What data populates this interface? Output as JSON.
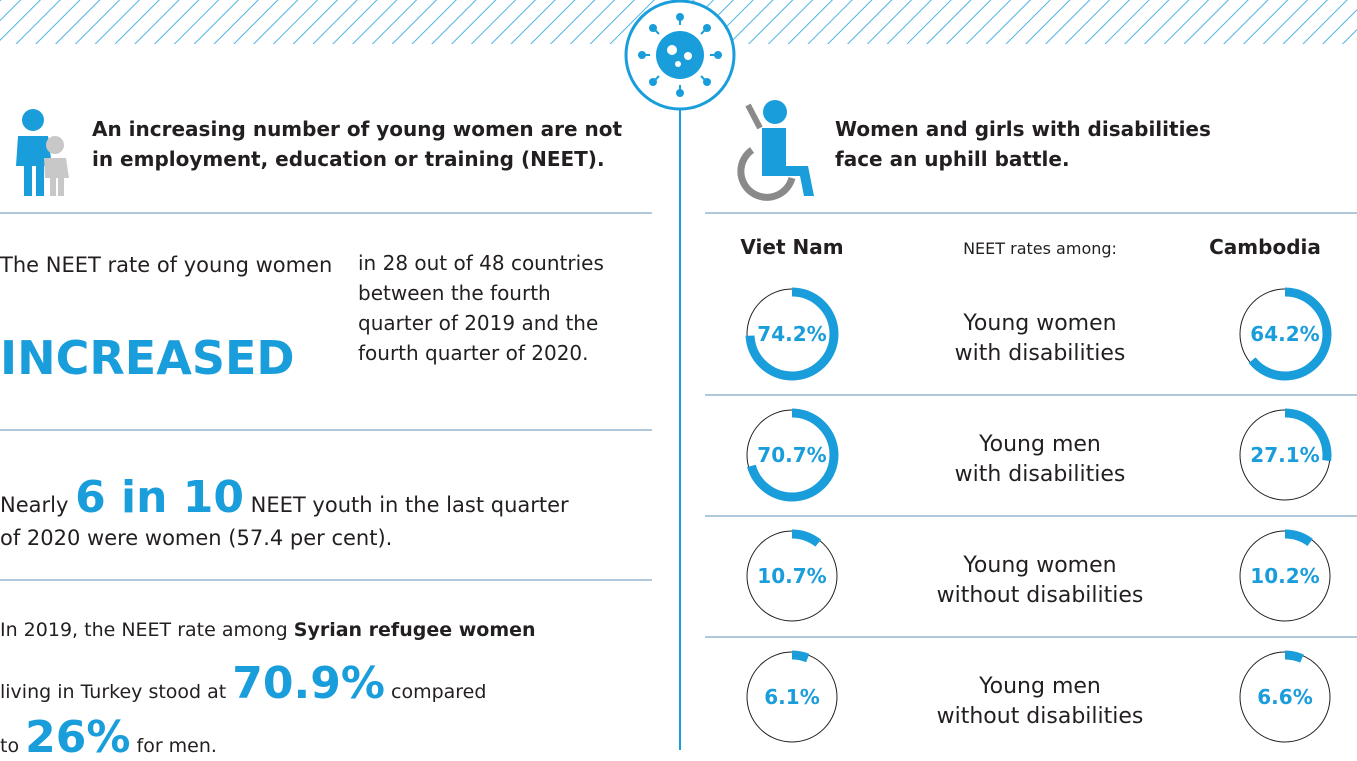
{
  "left": {
    "header": [
      "An increasing number of young women are not",
      "in employment, education or training (NEET)."
    ],
    "block1": {
      "intro": "The NEET rate of young women",
      "highlight": "INCREASED",
      "detail": [
        "in 28 out of 48 countries",
        "between the fourth",
        "quarter of 2019 and the",
        "fourth quarter of 2020."
      ]
    },
    "block2": {
      "prefix": "Nearly",
      "highlight": "6 in 10",
      "rest": "NEET youth in the last quarter",
      "line2": "of 2020 were women (57.4 per cent)."
    },
    "block3": {
      "a": "In 2019, the NEET rate among",
      "b": "Syrian refugee women",
      "c": "living in Turkey stood at",
      "d": "70.9%",
      "e": "compared",
      "f": "to",
      "g": "26%",
      "h": "for men."
    }
  },
  "right": {
    "header": [
      "Women and girls with disabilities",
      "face an uphill battle."
    ],
    "columns": [
      "Viet Nam",
      "NEET rates among:",
      "Cambodia"
    ],
    "rows": [
      {
        "label": [
          "Young women",
          "with disabilities"
        ],
        "viet_nam": {
          "value": 74.2,
          "label": "74.2%"
        },
        "cambodia": {
          "value": 64.2,
          "label": "64.2%"
        }
      },
      {
        "label": [
          "Young men",
          "with disabilities"
        ],
        "viet_nam": {
          "value": 70.7,
          "label": "70.7%"
        },
        "cambodia": {
          "value": 27.1,
          "label": "27.1%"
        }
      },
      {
        "label": [
          "Young women",
          "without disabilities"
        ],
        "viet_nam": {
          "value": 10.7,
          "label": "10.7%"
        },
        "cambodia": {
          "value": 10.2,
          "label": "10.2%"
        }
      },
      {
        "label": [
          "Young men",
          "without disabilities"
        ],
        "viet_nam": {
          "value": 6.1,
          "label": "6.1%"
        },
        "cambodia": {
          "value": 6.6,
          "label": "6.6%"
        }
      }
    ]
  }
}
